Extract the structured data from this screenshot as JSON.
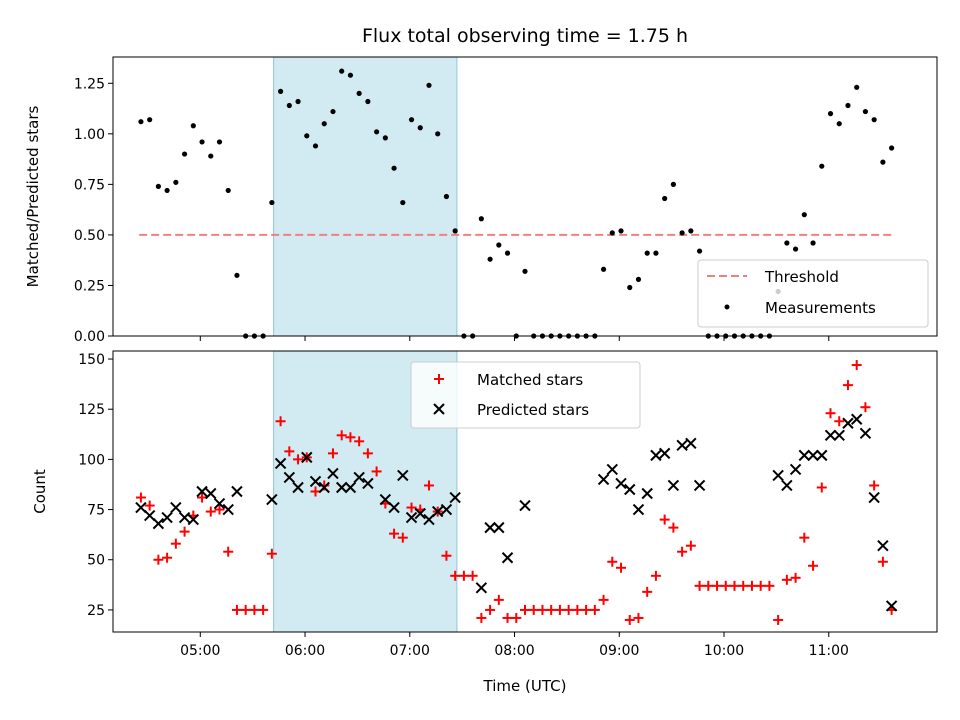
{
  "chart_data": [
    {
      "type": "scatter",
      "title": "Flux total observing time = 1.75 h",
      "ylabel": "Matched/Predicted stars",
      "xlabel": "",
      "ylim": [
        0,
        1.38
      ],
      "yticks": [
        "0.00",
        "0.25",
        "0.50",
        "0.75",
        "1.00",
        "1.25"
      ],
      "ytick_values": [
        0,
        0.25,
        0.5,
        0.75,
        1.0,
        1.25
      ],
      "highlight_span": [
        "05:42",
        "07:27"
      ],
      "highlight_color": "#add8e6",
      "threshold": {
        "name": "Threshold",
        "y": 0.5,
        "x_range": [
          "04:25",
          "11:37"
        ],
        "color": "#f08080",
        "style": "dashed"
      },
      "legend_position": "bottom-right",
      "series": [
        {
          "name": "Measurements",
          "marker": "dot",
          "color": "#000000",
          "points": [
            [
              "04:26",
              1.06
            ],
            [
              "04:31",
              1.07
            ],
            [
              "04:36",
              0.74
            ],
            [
              "04:41",
              0.72
            ],
            [
              "04:46",
              0.76
            ],
            [
              "04:51",
              0.9
            ],
            [
              "04:56",
              1.04
            ],
            [
              "05:01",
              0.96
            ],
            [
              "05:06",
              0.89
            ],
            [
              "05:11",
              0.96
            ],
            [
              "05:16",
              0.72
            ],
            [
              "05:21",
              0.3
            ],
            [
              "05:26",
              0.0
            ],
            [
              "05:31",
              0.0
            ],
            [
              "05:36",
              0.0
            ],
            [
              "05:41",
              0.66
            ],
            [
              "05:46",
              1.21
            ],
            [
              "05:51",
              1.14
            ],
            [
              "05:56",
              1.16
            ],
            [
              "06:01",
              0.99
            ],
            [
              "06:06",
              0.94
            ],
            [
              "06:11",
              1.05
            ],
            [
              "06:16",
              1.11
            ],
            [
              "06:21",
              1.31
            ],
            [
              "06:26",
              1.29
            ],
            [
              "06:31",
              1.2
            ],
            [
              "06:36",
              1.16
            ],
            [
              "06:41",
              1.01
            ],
            [
              "06:46",
              0.98
            ],
            [
              "06:51",
              0.83
            ],
            [
              "06:56",
              0.66
            ],
            [
              "07:01",
              1.07
            ],
            [
              "07:06",
              1.03
            ],
            [
              "07:11",
              1.24
            ],
            [
              "07:16",
              1.0
            ],
            [
              "07:21",
              0.69
            ],
            [
              "07:26",
              0.52
            ],
            [
              "07:31",
              0.0
            ],
            [
              "07:36",
              0.0
            ],
            [
              "07:41",
              0.58
            ],
            [
              "07:46",
              0.38
            ],
            [
              "07:51",
              0.45
            ],
            [
              "07:56",
              0.41
            ],
            [
              "08:01",
              0.0
            ],
            [
              "08:06",
              0.32
            ],
            [
              "08:11",
              0.0
            ],
            [
              "08:16",
              0.0
            ],
            [
              "08:21",
              0.0
            ],
            [
              "08:26",
              0.0
            ],
            [
              "08:31",
              0.0
            ],
            [
              "08:36",
              0.0
            ],
            [
              "08:41",
              0.0
            ],
            [
              "08:46",
              0.0
            ],
            [
              "08:51",
              0.33
            ],
            [
              "08:56",
              0.51
            ],
            [
              "09:01",
              0.52
            ],
            [
              "09:06",
              0.24
            ],
            [
              "09:11",
              0.28
            ],
            [
              "09:16",
              0.41
            ],
            [
              "09:21",
              0.41
            ],
            [
              "09:26",
              0.68
            ],
            [
              "09:31",
              0.75
            ],
            [
              "09:36",
              0.51
            ],
            [
              "09:41",
              0.52
            ],
            [
              "09:46",
              0.42
            ],
            [
              "09:51",
              0.0
            ],
            [
              "09:56",
              0.0
            ],
            [
              "10:01",
              0.0
            ],
            [
              "10:06",
              0.0
            ],
            [
              "10:11",
              0.0
            ],
            [
              "10:16",
              0.0
            ],
            [
              "10:21",
              0.0
            ],
            [
              "10:26",
              0.0
            ],
            [
              "10:31",
              0.22
            ],
            [
              "10:36",
              0.46
            ],
            [
              "10:41",
              0.43
            ],
            [
              "10:46",
              0.6
            ],
            [
              "10:51",
              0.46
            ],
            [
              "10:56",
              0.84
            ],
            [
              "11:01",
              1.1
            ],
            [
              "11:06",
              1.05
            ],
            [
              "11:11",
              1.14
            ],
            [
              "11:16",
              1.23
            ],
            [
              "11:21",
              1.11
            ],
            [
              "11:26",
              1.07
            ],
            [
              "11:31",
              0.86
            ],
            [
              "11:36",
              0.93
            ]
          ]
        }
      ]
    },
    {
      "type": "scatter",
      "title": "",
      "ylabel": "Count",
      "xlabel": "Time (UTC)",
      "ylim": [
        14,
        154
      ],
      "yticks": [
        "25",
        "50",
        "75",
        "100",
        "125",
        "150"
      ],
      "ytick_values": [
        25,
        50,
        75,
        100,
        125,
        150
      ],
      "xticks": [
        "05:00",
        "06:00",
        "07:00",
        "08:00",
        "09:00",
        "10:00",
        "11:00"
      ],
      "xlim": [
        "04:10",
        "12:02"
      ],
      "highlight_span": [
        "05:42",
        "07:27"
      ],
      "highlight_color": "#add8e6",
      "legend_position": "top-center",
      "series": [
        {
          "name": "Matched stars",
          "marker": "plus",
          "color": "#ff0000",
          "points": [
            [
              "04:26",
              81
            ],
            [
              "04:31",
              77
            ],
            [
              "04:36",
              50
            ],
            [
              "04:41",
              51
            ],
            [
              "04:46",
              58
            ],
            [
              "04:51",
              64
            ],
            [
              "04:56",
              72
            ],
            [
              "05:01",
              81
            ],
            [
              "05:06",
              74
            ],
            [
              "05:11",
              75
            ],
            [
              "05:16",
              54
            ],
            [
              "05:21",
              25
            ],
            [
              "05:26",
              25
            ],
            [
              "05:31",
              25
            ],
            [
              "05:36",
              25
            ],
            [
              "05:41",
              53
            ],
            [
              "05:46",
              119
            ],
            [
              "05:51",
              104
            ],
            [
              "05:56",
              100
            ],
            [
              "06:01",
              101
            ],
            [
              "06:06",
              84
            ],
            [
              "06:11",
              87
            ],
            [
              "06:16",
              103
            ],
            [
              "06:21",
              112
            ],
            [
              "06:26",
              111
            ],
            [
              "06:31",
              109
            ],
            [
              "06:36",
              103
            ],
            [
              "06:41",
              94
            ],
            [
              "06:46",
              78
            ],
            [
              "06:51",
              63
            ],
            [
              "06:56",
              61
            ],
            [
              "07:01",
              76
            ],
            [
              "07:06",
              75
            ],
            [
              "07:11",
              87
            ],
            [
              "07:16",
              74
            ],
            [
              "07:21",
              52
            ],
            [
              "07:26",
              42
            ],
            [
              "07:31",
              42
            ],
            [
              "07:36",
              42
            ],
            [
              "07:41",
              21
            ],
            [
              "07:46",
              25
            ],
            [
              "07:51",
              30
            ],
            [
              "07:56",
              21
            ],
            [
              "08:01",
              21
            ],
            [
              "08:06",
              25
            ],
            [
              "08:11",
              25
            ],
            [
              "08:16",
              25
            ],
            [
              "08:21",
              25
            ],
            [
              "08:26",
              25
            ],
            [
              "08:31",
              25
            ],
            [
              "08:36",
              25
            ],
            [
              "08:41",
              25
            ],
            [
              "08:46",
              25
            ],
            [
              "08:51",
              30
            ],
            [
              "08:56",
              49
            ],
            [
              "09:01",
              46
            ],
            [
              "09:06",
              20
            ],
            [
              "09:11",
              21
            ],
            [
              "09:16",
              34
            ],
            [
              "09:21",
              42
            ],
            [
              "09:26",
              70
            ],
            [
              "09:31",
              66
            ],
            [
              "09:36",
              54
            ],
            [
              "09:41",
              57
            ],
            [
              "09:46",
              37
            ],
            [
              "09:51",
              37
            ],
            [
              "09:56",
              37
            ],
            [
              "10:01",
              37
            ],
            [
              "10:06",
              37
            ],
            [
              "10:11",
              37
            ],
            [
              "10:16",
              37
            ],
            [
              "10:21",
              37
            ],
            [
              "10:26",
              37
            ],
            [
              "10:31",
              20
            ],
            [
              "10:36",
              40
            ],
            [
              "10:41",
              41
            ],
            [
              "10:46",
              61
            ],
            [
              "10:51",
              47
            ],
            [
              "10:56",
              86
            ],
            [
              "11:01",
              123
            ],
            [
              "11:06",
              119
            ],
            [
              "11:11",
              137
            ],
            [
              "11:16",
              147
            ],
            [
              "11:21",
              126
            ],
            [
              "11:26",
              87
            ],
            [
              "11:31",
              49
            ],
            [
              "11:36",
              25
            ]
          ]
        },
        {
          "name": "Predicted stars",
          "marker": "x",
          "color": "#000000",
          "points": [
            [
              "04:26",
              76
            ],
            [
              "04:31",
              72
            ],
            [
              "04:36",
              68
            ],
            [
              "04:41",
              71
            ],
            [
              "04:46",
              76
            ],
            [
              "04:51",
              71
            ],
            [
              "04:56",
              70
            ],
            [
              "05:01",
              84
            ],
            [
              "05:06",
              83
            ],
            [
              "05:11",
              78
            ],
            [
              "05:16",
              75
            ],
            [
              "05:21",
              84
            ],
            [
              "05:41",
              80
            ],
            [
              "05:46",
              98
            ],
            [
              "05:51",
              91
            ],
            [
              "05:56",
              86
            ],
            [
              "06:01",
              101
            ],
            [
              "06:06",
              89
            ],
            [
              "06:11",
              86
            ],
            [
              "06:16",
              93
            ],
            [
              "06:21",
              86
            ],
            [
              "06:26",
              86
            ],
            [
              "06:31",
              91
            ],
            [
              "06:36",
              88
            ],
            [
              "06:46",
              80
            ],
            [
              "06:51",
              76
            ],
            [
              "06:56",
              92
            ],
            [
              "07:01",
              71
            ],
            [
              "07:06",
              73
            ],
            [
              "07:11",
              70
            ],
            [
              "07:16",
              74
            ],
            [
              "07:21",
              75
            ],
            [
              "07:26",
              81
            ],
            [
              "07:41",
              36
            ],
            [
              "07:46",
              66
            ],
            [
              "07:51",
              66
            ],
            [
              "07:56",
              51
            ],
            [
              "08:06",
              77
            ],
            [
              "08:51",
              90
            ],
            [
              "08:56",
              95
            ],
            [
              "09:01",
              88
            ],
            [
              "09:06",
              85
            ],
            [
              "09:11",
              75
            ],
            [
              "09:16",
              83
            ],
            [
              "09:21",
              102
            ],
            [
              "09:26",
              103
            ],
            [
              "09:31",
              87
            ],
            [
              "09:36",
              107
            ],
            [
              "09:41",
              108
            ],
            [
              "09:46",
              87
            ],
            [
              "10:31",
              92
            ],
            [
              "10:36",
              87
            ],
            [
              "10:41",
              95
            ],
            [
              "10:46",
              102
            ],
            [
              "10:51",
              102
            ],
            [
              "10:56",
              102
            ],
            [
              "11:01",
              112
            ],
            [
              "11:06",
              112
            ],
            [
              "11:11",
              118
            ],
            [
              "11:16",
              120
            ],
            [
              "11:21",
              113
            ],
            [
              "11:26",
              81
            ],
            [
              "11:31",
              57
            ],
            [
              "11:36",
              27
            ]
          ]
        }
      ]
    }
  ],
  "colors": {
    "highlight": "#add8e6",
    "threshold": "#f08080",
    "matched": "#ff0000",
    "predicted": "#000000"
  }
}
